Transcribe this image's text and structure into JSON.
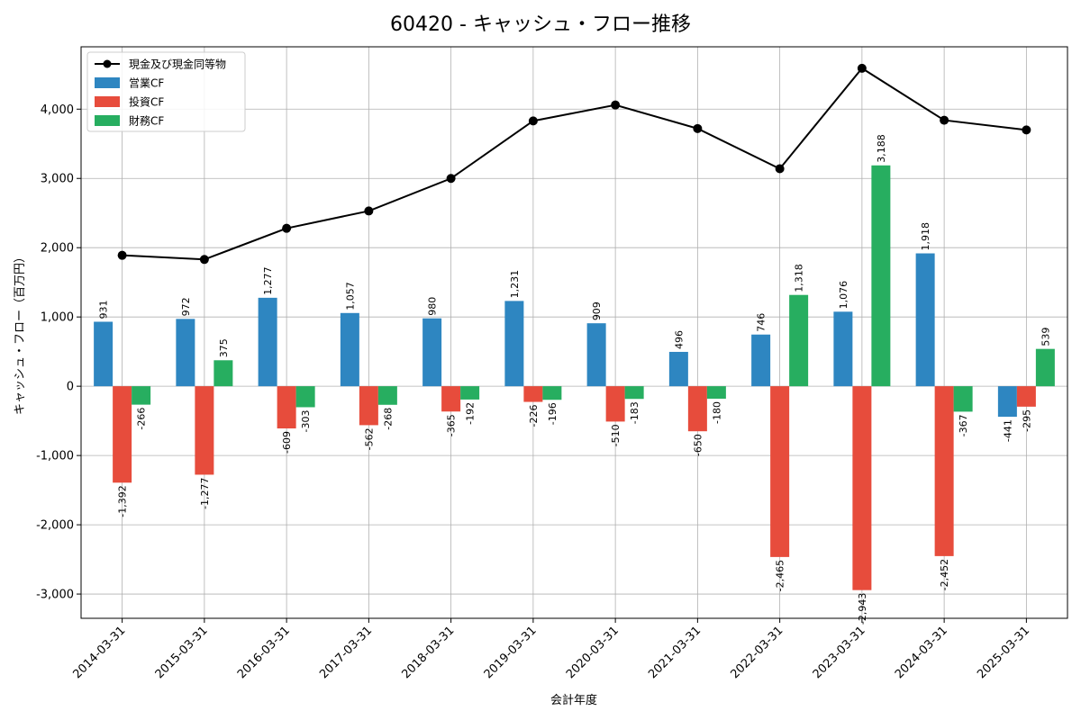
{
  "chart_data": {
    "type": "bar",
    "title": "60420 - キャッシュ・フロー推移",
    "xlabel": "会計年度",
    "ylabel": "キャッシュ・フロー（百万円）",
    "categories": [
      "2014-03-31",
      "2015-03-31",
      "2016-03-31",
      "2017-03-31",
      "2018-03-31",
      "2019-03-31",
      "2020-03-31",
      "2021-03-31",
      "2022-03-31",
      "2023-03-31",
      "2024-03-31",
      "2025-03-31"
    ],
    "ylim": [
      -3350,
      4900
    ],
    "yticks": [
      -3000,
      -2000,
      -1000,
      0,
      1000,
      2000,
      3000,
      4000
    ],
    "ytick_labels": [
      "-3,000",
      "-2,000",
      "-1,000",
      "0",
      "1,000",
      "2,000",
      "3,000",
      "4,000"
    ],
    "grid": true,
    "legend_position": "top-left",
    "series": [
      {
        "name": "営業CF",
        "kind": "bar",
        "color": "#2e86c1",
        "values": [
          931,
          972,
          1277,
          1057,
          980,
          1231,
          909,
          496,
          746,
          1076,
          1918,
          -441
        ],
        "labels": [
          "931",
          "972",
          "1,277",
          "1,057",
          "980",
          "1,231",
          "909",
          "496",
          "746",
          "1,076",
          "1,918",
          "-441"
        ]
      },
      {
        "name": "投資CF",
        "kind": "bar",
        "color": "#e74c3c",
        "values": [
          -1392,
          -1277,
          -609,
          -562,
          -365,
          -226,
          -510,
          -650,
          -2465,
          -2943,
          -2452,
          -295
        ],
        "labels": [
          "-1,392",
          "-1,277",
          "-609",
          "-562",
          "-365",
          "-226",
          "-510",
          "-650",
          "-2,465",
          "-2,943",
          "-2,452",
          "-295"
        ]
      },
      {
        "name": "財務CF",
        "kind": "bar",
        "color": "#27ae60",
        "values": [
          -266,
          375,
          -303,
          -268,
          -192,
          -196,
          -183,
          -180,
          1318,
          3188,
          -367,
          539
        ],
        "labels": [
          "-266",
          "375",
          "-303",
          "-268",
          "-192",
          "-196",
          "-183",
          "-180",
          "1,318",
          "3,188",
          "-367",
          "539"
        ]
      },
      {
        "name": "現金及び現金同等物",
        "kind": "line",
        "color": "#000000",
        "values": [
          1890,
          1830,
          2280,
          2530,
          3000,
          3830,
          4060,
          3720,
          3140,
          4590,
          3840,
          3700
        ]
      }
    ]
  }
}
